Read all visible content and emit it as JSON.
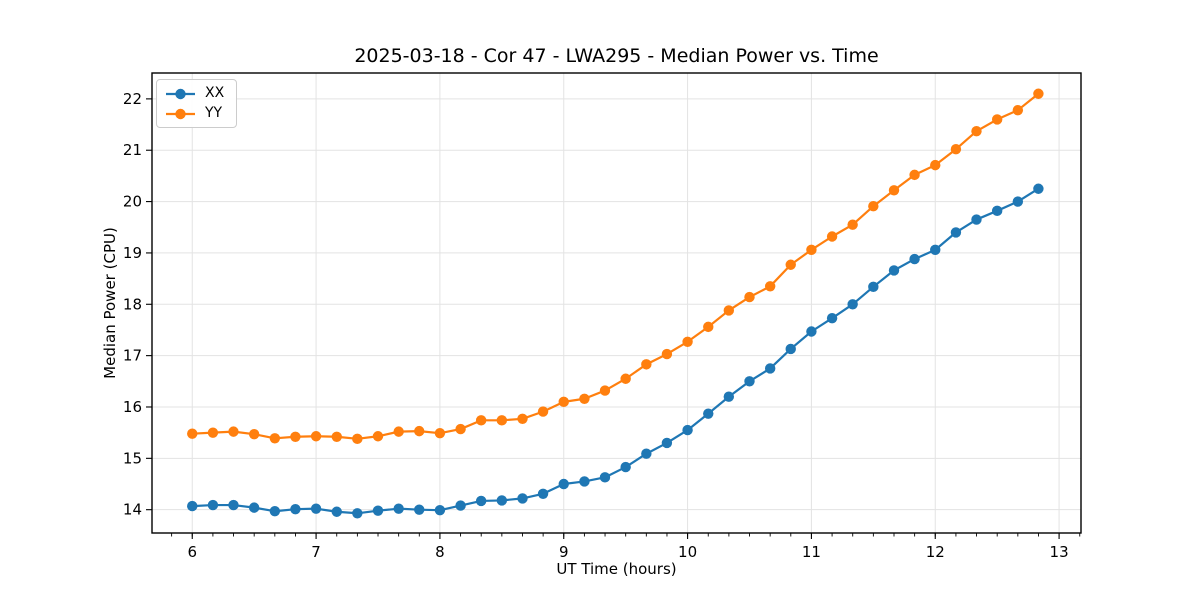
{
  "title": "2025-03-18 - Cor 47 - LWA295 - Median Power vs. Time",
  "colors": {
    "series_xx": "#1f77b4",
    "series_yy": "#ff7f0e",
    "grid": "#e3e3e3",
    "spine": "#000000",
    "background": "#ffffff",
    "legend_border": "#cccccc"
  },
  "legend": {
    "position": "upper-left",
    "items": [
      {
        "label": "XX",
        "color": "#1f77b4"
      },
      {
        "label": "YY",
        "color": "#ff7f0e"
      }
    ]
  },
  "chart_data": {
    "type": "line",
    "title": "2025-03-18 - Cor 47 - LWA295 - Median Power vs. Time",
    "xlabel": "UT Time (hours)",
    "ylabel": "Median Power (CPU)",
    "xlim": [
      5.675,
      13.177
    ],
    "ylim": [
      13.546,
      22.504
    ],
    "xticks": [
      6,
      7,
      8,
      9,
      10,
      11,
      12,
      13
    ],
    "yticks": [
      14,
      15,
      16,
      17,
      18,
      19,
      20,
      21,
      22
    ],
    "minor_xtick_step": 0.16667,
    "grid": true,
    "legend_position": "upper-left",
    "marker": "circle",
    "x": [
      6.0,
      6.167,
      6.333,
      6.5,
      6.667,
      6.833,
      7.0,
      7.167,
      7.333,
      7.5,
      7.667,
      7.833,
      8.0,
      8.167,
      8.333,
      8.5,
      8.667,
      8.833,
      9.0,
      9.167,
      9.333,
      9.5,
      9.667,
      9.833,
      10.0,
      10.167,
      10.333,
      10.5,
      10.667,
      10.833,
      11.0,
      11.167,
      11.333,
      11.5,
      11.667,
      11.833,
      12.0,
      12.167,
      12.333,
      12.5,
      12.667,
      12.833
    ],
    "series": [
      {
        "name": "XX",
        "color": "#1f77b4",
        "values": [
          14.07,
          14.09,
          14.09,
          14.04,
          13.97,
          14.01,
          14.02,
          13.96,
          13.93,
          13.98,
          14.02,
          14.0,
          13.99,
          14.08,
          14.17,
          14.18,
          14.22,
          14.31,
          14.5,
          14.55,
          14.63,
          14.83,
          15.09,
          15.3,
          15.55,
          15.87,
          16.2,
          16.5,
          16.75,
          17.13,
          17.47,
          17.73,
          18.0,
          18.34,
          18.66,
          18.88,
          19.06,
          19.4,
          19.65,
          19.82,
          20.0,
          20.25
        ]
      },
      {
        "name": "YY",
        "color": "#ff7f0e",
        "values": [
          15.48,
          15.5,
          15.52,
          15.47,
          15.39,
          15.42,
          15.43,
          15.42,
          15.38,
          15.43,
          15.52,
          15.53,
          15.49,
          15.57,
          15.74,
          15.74,
          15.77,
          15.91,
          16.1,
          16.16,
          16.32,
          16.55,
          16.83,
          17.03,
          17.27,
          17.56,
          17.88,
          18.14,
          18.35,
          18.77,
          19.06,
          19.32,
          19.55,
          19.91,
          20.22,
          20.52,
          20.71,
          21.02,
          21.37,
          21.6,
          21.78,
          22.1
        ]
      }
    ]
  }
}
